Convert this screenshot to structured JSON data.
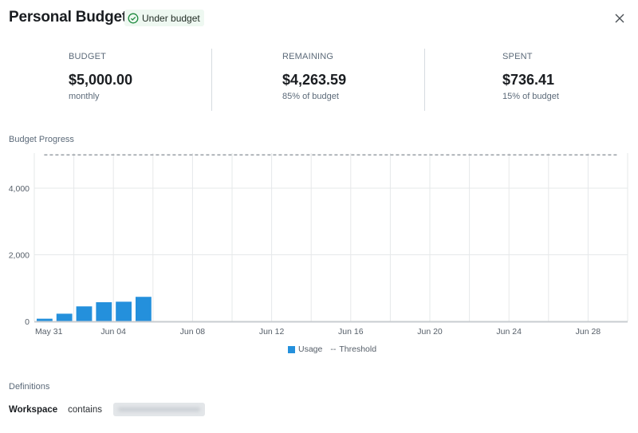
{
  "header": {
    "title": "Personal Budget",
    "status_badge": "Under budget",
    "status_color": "#1e8a3e",
    "close_icon": "close-icon"
  },
  "stats": [
    {
      "label": "BUDGET",
      "value": "$5,000.00",
      "sub": "monthly"
    },
    {
      "label": "REMAINING",
      "value": "$4,263.59",
      "sub": "85% of budget"
    },
    {
      "label": "SPENT",
      "value": "$736.41",
      "sub": "15% of budget"
    }
  ],
  "chart_section_title": "Budget Progress",
  "chart_data": {
    "type": "bar",
    "x_start": "May 31",
    "x_end": "Jun 29",
    "x_tick_labels": [
      "May 31",
      "Jun 04",
      "Jun 08",
      "Jun 12",
      "Jun 16",
      "Jun 20",
      "Jun 24",
      "Jun 28"
    ],
    "y_tick_labels": [
      "0",
      "2,000",
      "4,000"
    ],
    "ylim": [
      0,
      5000
    ],
    "grid": true,
    "categories": [
      "May 31",
      "Jun 01",
      "Jun 02",
      "Jun 03",
      "Jun 04",
      "Jun 05"
    ],
    "series": [
      {
        "name": "Usage",
        "values": [
          80,
          230,
          450,
          575,
          590,
          736.41
        ],
        "color": "#2490dc"
      }
    ],
    "threshold": {
      "name": "Threshold",
      "value": 5000,
      "color": "#9aa0a6"
    },
    "legend_position": "bottom-center"
  },
  "legend": {
    "usage": "Usage",
    "threshold_marker": "--",
    "threshold": "Threshold"
  },
  "definitions": {
    "title": "Definitions",
    "key": "Workspace",
    "operator": "contains"
  }
}
